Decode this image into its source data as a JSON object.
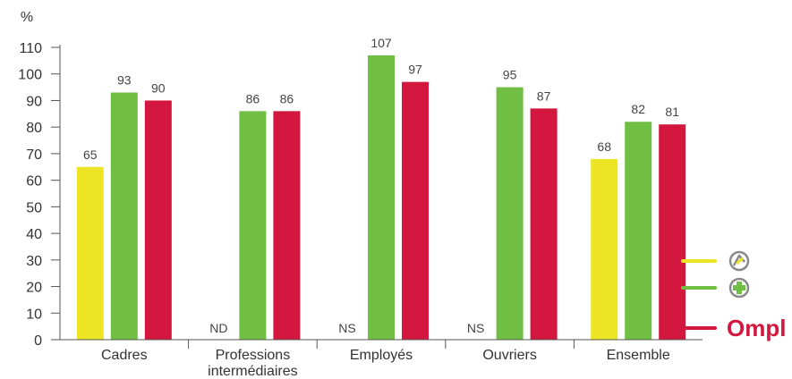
{
  "chart_data": {
    "type": "bar",
    "unit_label": "%",
    "ylim": [
      0,
      110
    ],
    "yticks": [
      0,
      10,
      20,
      30,
      40,
      50,
      60,
      70,
      80,
      90,
      100,
      110
    ],
    "grid": false,
    "categories": [
      [
        "Cadres"
      ],
      [
        "Professions",
        "intermédiaires"
      ],
      [
        "Employés"
      ],
      [
        "Ouvriers"
      ],
      [
        "Ensemble"
      ]
    ],
    "series": [
      {
        "color": "#ece523",
        "legend_icon": "recycle-logo-icon",
        "values": [
          65,
          null,
          null,
          null,
          68
        ],
        "labels": [
          "65",
          "ND",
          "NS",
          "NS",
          "68"
        ]
      },
      {
        "color": "#70bf44",
        "legend_icon": "plus-cross-logo-icon",
        "values": [
          93,
          86,
          107,
          95,
          82
        ],
        "labels": [
          "93",
          "86",
          "107",
          "95",
          "82"
        ]
      },
      {
        "color": "#d3173f",
        "legend_icon": "ompl-logo",
        "values": [
          90,
          86,
          97,
          87,
          81
        ],
        "labels": [
          "90",
          "86",
          "97",
          "87",
          "81"
        ]
      }
    ],
    "legend_position": "right",
    "legend_logo_text": "Ompl"
  }
}
